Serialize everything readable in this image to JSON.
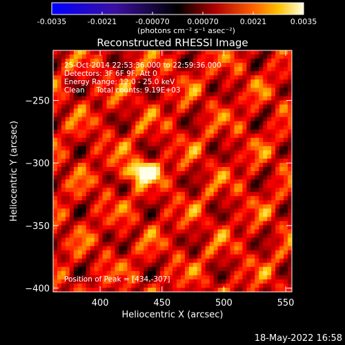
{
  "chart_data": {
    "type": "heatmap",
    "title": "Reconstructed RHESSI Image",
    "xlabel": "Heliocentric X (arcsec)",
    "ylabel": "Heliocentric Y (arcsec)",
    "xlim": [
      362,
      555
    ],
    "ylim": [
      -403,
      -210
    ],
    "xticks": [
      400,
      450,
      500,
      550
    ],
    "yticks": [
      -250,
      -300,
      -350,
      -400
    ],
    "annotations": [
      "25-Oct-2014 22:53:36.000 to 22:59:36.000",
      "Detectors: 3F 6F 9F, Att 0",
      "Energy Range: 12.0 - 25.0 keV",
      "Clean     Total counts: 9.19E+03",
      "Position of Peak = [434,-307]"
    ],
    "peak": {
      "x": 434,
      "y": -307
    },
    "colorbar": {
      "range": [
        -0.0035,
        0.0035
      ],
      "tick_labels": [
        "-0.0035",
        "-0.0021",
        "-0.00070",
        "0.00070",
        "0.0021",
        "0.0035"
      ],
      "tick_values": [
        -0.0035,
        -0.0021,
        -0.0007,
        0.0007,
        0.0021,
        0.0035
      ],
      "units": "(photons cm⁻² s⁻¹ asec⁻²)"
    },
    "footer_timestamp": "18-May-2022 16:58"
  },
  "colors": {
    "background": "#000000",
    "text": "#ffffff",
    "negative": "#3a10a0",
    "positive_high": "#ffffe0"
  }
}
